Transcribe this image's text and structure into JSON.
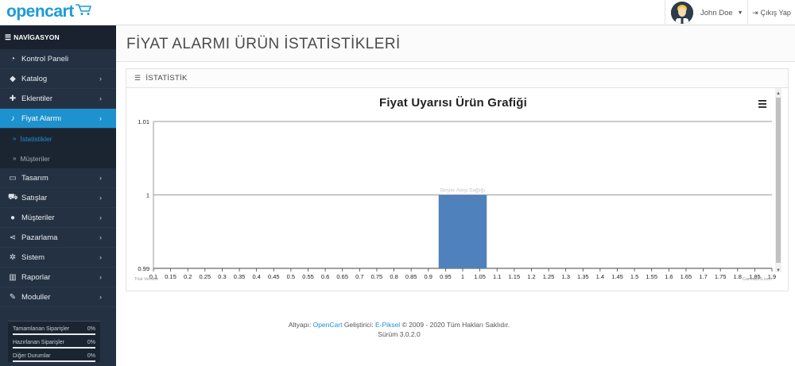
{
  "brand": {
    "logo_text": "opencart"
  },
  "header": {
    "user_name": "John Doe",
    "logout_label": "Çıkış Yap"
  },
  "sidebar": {
    "title": "NAVİGASYON",
    "items": [
      {
        "label": "Kontrol Paneli",
        "icon": "dashboard-icon",
        "has_children": false
      },
      {
        "label": "Katalog",
        "icon": "tag-icon",
        "has_children": true
      },
      {
        "label": "Eklentiler",
        "icon": "puzzle-icon",
        "has_children": true
      },
      {
        "label": "Fiyat Alarmı",
        "icon": "bell-icon",
        "has_children": true,
        "active": true,
        "children": [
          {
            "label": "İstatistikler",
            "current": true
          },
          {
            "label": "Müşteriler",
            "current": false
          }
        ]
      },
      {
        "label": "Tasarım",
        "icon": "desktop-icon",
        "has_children": true
      },
      {
        "label": "Satışlar",
        "icon": "cart-icon",
        "has_children": true
      },
      {
        "label": "Müşteriler",
        "icon": "user-icon",
        "has_children": true
      },
      {
        "label": "Pazarlama",
        "icon": "share-icon",
        "has_children": true
      },
      {
        "label": "Sistem",
        "icon": "cog-icon",
        "has_children": true
      },
      {
        "label": "Raporlar",
        "icon": "bar-chart-icon",
        "has_children": true
      },
      {
        "label": "Moduller",
        "icon": "wrench-icon",
        "has_children": true
      }
    ],
    "progress": [
      {
        "label": "Tamamlanan Siparişler",
        "value": "0%"
      },
      {
        "label": "Hazırlanan Siparişler",
        "value": "0%"
      },
      {
        "label": "Diğer Durumlar",
        "value": "0%"
      }
    ]
  },
  "page": {
    "title": "FİYAT ALARMI ÜRÜN İSTATİSTİKLERİ",
    "panel_title": "İSTATİSTİK"
  },
  "chart_data": {
    "type": "bar",
    "title": "Fiyat Uyarısı Ürün Grafiği",
    "x": [
      1.0
    ],
    "values": [
      1
    ],
    "data_labels": [
      "Beşler Ateşi Sağlığı"
    ],
    "xlim": [
      0.1,
      1.9
    ],
    "ylim": [
      0.99,
      1.01
    ],
    "x_ticks": [
      "0.1",
      "0.15",
      "0.2",
      "0.25",
      "0.3",
      "0.35",
      "0.4",
      "0.45",
      "0.5",
      "0.55",
      "0.6",
      "0.65",
      "0.7",
      "0.75",
      "0.8",
      "0.85",
      "0.9",
      "0.95",
      "1",
      "1.05",
      "1.1",
      "1.15",
      "1.2",
      "1.25",
      "1.3",
      "1.35",
      "1.4",
      "1.45",
      "1.5",
      "1.55",
      "1.6",
      "1.65",
      "1.7",
      "1.75",
      "1.8",
      "1.85",
      "1.9"
    ],
    "y_ticks": [
      "0.99",
      "1",
      "1.01"
    ],
    "bar_color": "#4f81bd",
    "grid": true,
    "watermark_left": "Trial Version",
    "watermark_right": "CanvasJS.com"
  },
  "footer": {
    "prefix": "Altyapı: ",
    "link1": "OpenCart",
    "middle": " Geliştirici: ",
    "link2": "E-Piksel",
    "suffix": " © 2009 - 2020 Tüm Hakları Saklıdır.",
    "version": "Sürüm 3.0.2.0"
  },
  "colors": {
    "sidebar_bg": "#243142",
    "accent": "#1e91cf",
    "brand_blue": "#1b9bd7"
  }
}
